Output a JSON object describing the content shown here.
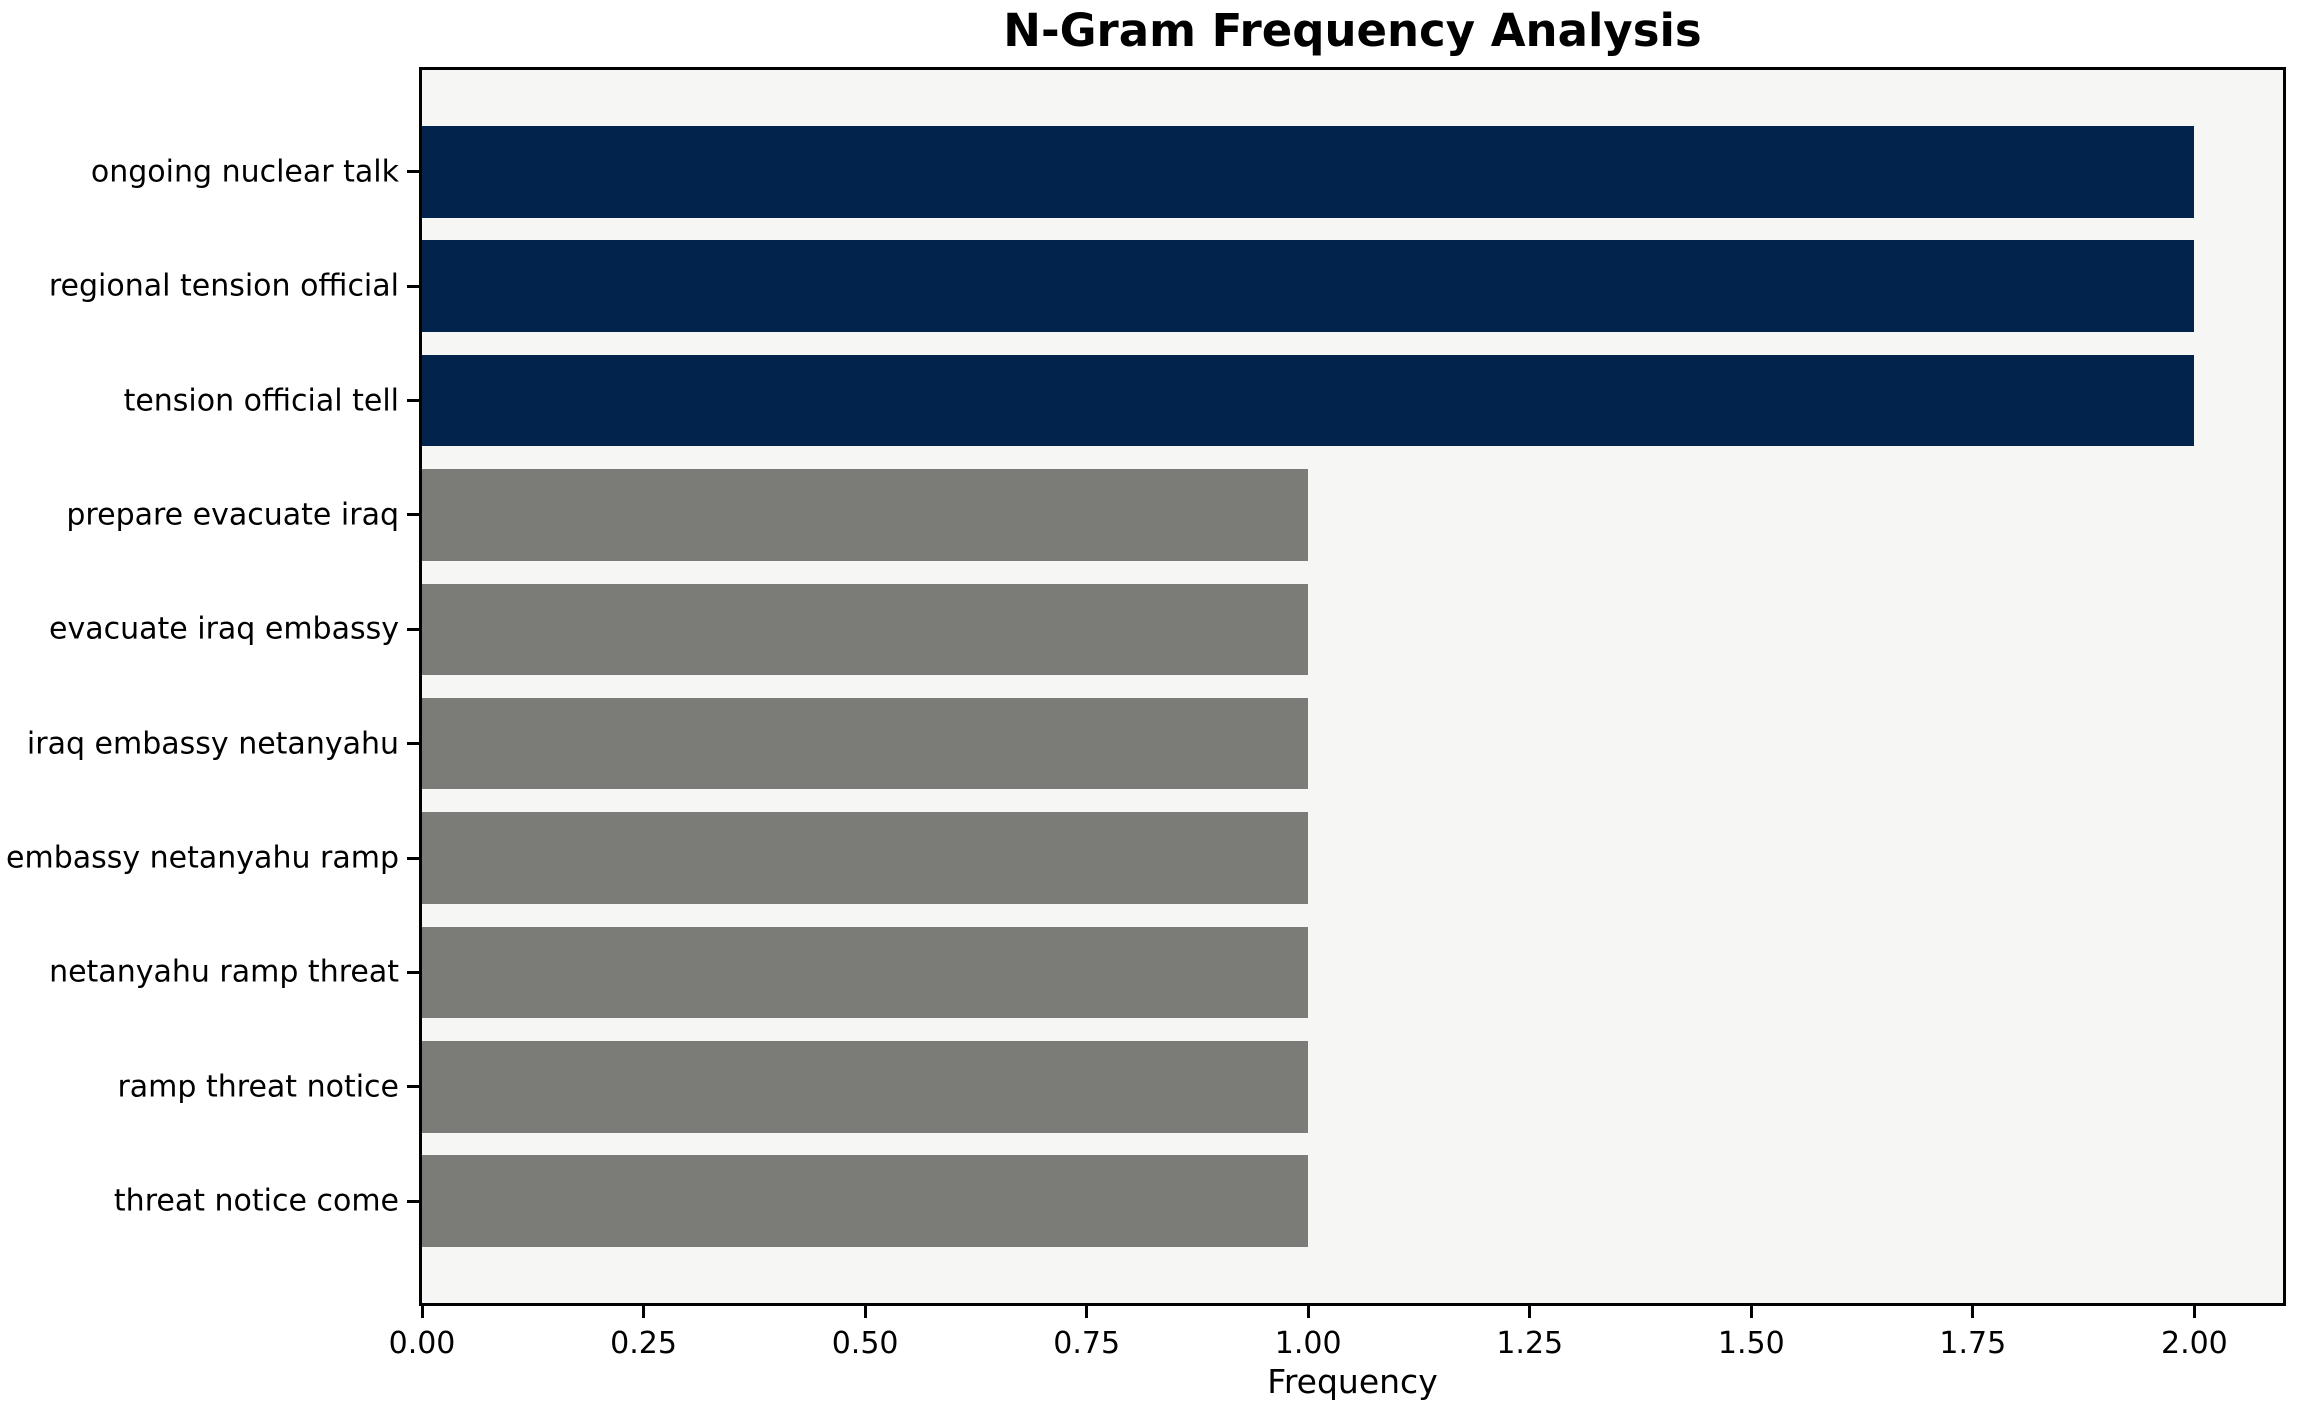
{
  "chart_data": {
    "type": "bar",
    "orientation": "horizontal",
    "title": "N-Gram Frequency Analysis",
    "xlabel": "Frequency",
    "ylabel": "",
    "categories": [
      "ongoing nuclear talk",
      "regional tension official",
      "tension official tell",
      "prepare evacuate iraq",
      "evacuate iraq embassy",
      "iraq embassy netanyahu",
      "embassy netanyahu ramp",
      "netanyahu ramp threat",
      "ramp threat notice",
      "threat notice come"
    ],
    "values": [
      2,
      2,
      2,
      1,
      1,
      1,
      1,
      1,
      1,
      1
    ],
    "bar_colors": [
      "#02234c",
      "#02234c",
      "#02234c",
      "#7b7b78",
      "#7b7b78",
      "#7b7b78",
      "#7b7b78",
      "#7b7b78",
      "#7b7b78",
      "#7b7b78"
    ],
    "x_ticks": [
      {
        "label": "0.00",
        "value": 0
      },
      {
        "label": "0.25",
        "value": 0.25
      },
      {
        "label": "0.50",
        "value": 0.5
      },
      {
        "label": "0.75",
        "value": 0.75
      },
      {
        "label": "1.00",
        "value": 1
      },
      {
        "label": "1.25",
        "value": 1.25
      },
      {
        "label": "1.50",
        "value": 1.5
      },
      {
        "label": "1.75",
        "value": 1.75
      },
      {
        "label": "2.00",
        "value": 2
      }
    ],
    "xlim": [
      0,
      2.1
    ],
    "grid": false,
    "legend": null,
    "colors": {
      "navy_bar": "#02234c",
      "gray_bar": "#7b7b78",
      "plot_background": "#f6f6f4",
      "figure_background": "#ffffff",
      "spine": "#000000",
      "text": "#000000"
    }
  }
}
